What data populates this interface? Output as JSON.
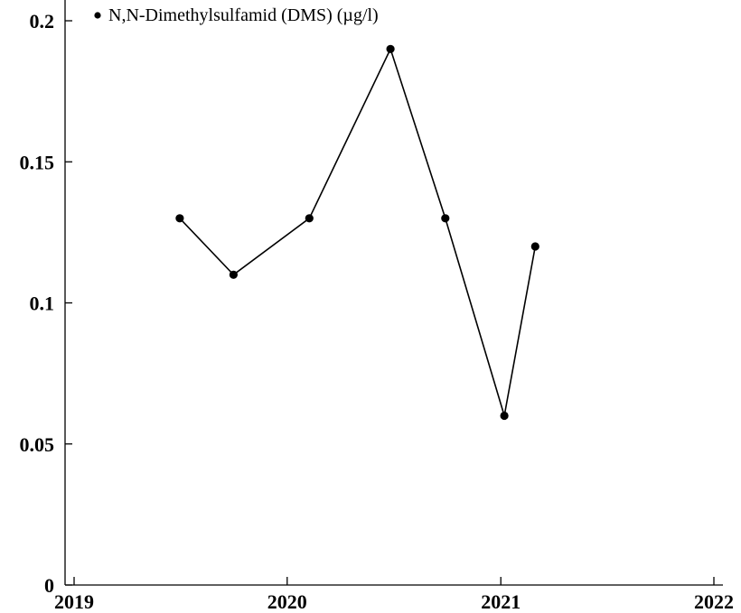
{
  "chart_data": {
    "type": "line",
    "title": "",
    "xlabel": "",
    "ylabel": "",
    "x_axis": {
      "ticks": [
        "2019",
        "2020",
        "2021",
        "2022"
      ],
      "range": [
        "2019-01-01",
        "2022-01-01"
      ]
    },
    "y_axis": {
      "ticks": [
        "0",
        "0.05",
        "0.1",
        "0.15",
        "0.2"
      ],
      "ylim": [
        0,
        0.2
      ]
    },
    "legend": {
      "placement": "top-left"
    },
    "grid": false,
    "series": [
      {
        "name": "N,N-Dimethylsulfamid (DMS) (µg/l)",
        "color": "#000000",
        "marker": "circle",
        "points": [
          {
            "x": "2019-07-01",
            "y": 0.13
          },
          {
            "x": "2019-10-01",
            "y": 0.11
          },
          {
            "x": "2020-02-08",
            "y": 0.13
          },
          {
            "x": "2020-06-26",
            "y": 0.19
          },
          {
            "x": "2020-09-28",
            "y": 0.13
          },
          {
            "x": "2021-01-07",
            "y": 0.06
          },
          {
            "x": "2021-03-01",
            "y": 0.12
          }
        ]
      }
    ]
  }
}
